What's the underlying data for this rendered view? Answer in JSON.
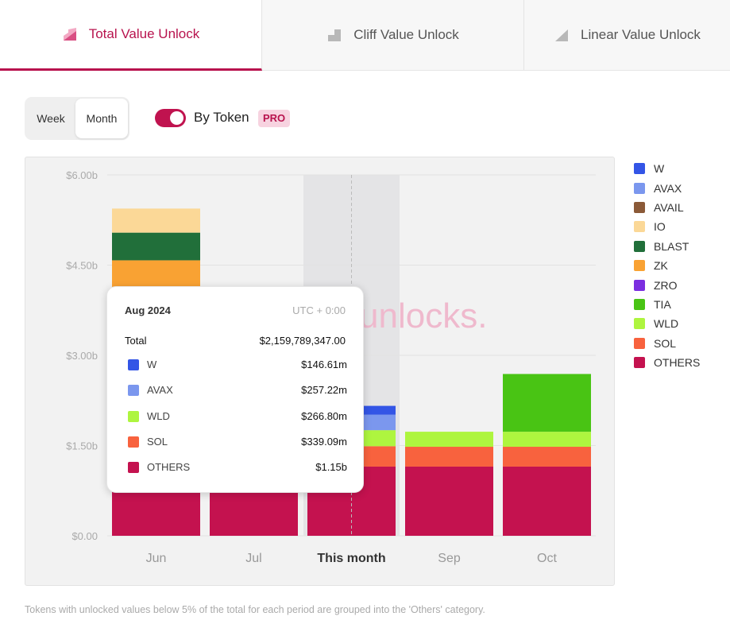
{
  "tabs": [
    {
      "label": "Total Value Unlock",
      "icon": "total-unlock-icon",
      "active": true
    },
    {
      "label": "Cliff Value Unlock",
      "icon": "cliff-unlock-icon",
      "active": false
    },
    {
      "label": "Linear Value Unlock",
      "icon": "linear-unlock-icon",
      "active": false
    }
  ],
  "controls": {
    "week_label": "Week",
    "month_label": "Month",
    "selected_period": "Month",
    "toggle_label": "By Token",
    "toggle_on": true,
    "pro_badge": "PRO"
  },
  "watermark": "unlocks.",
  "tooltip": {
    "month": "Aug 2024",
    "timezone": "UTC + 0:00",
    "total_label": "Total",
    "total_value": "$2,159,789,347.00",
    "rows": [
      {
        "name": "W",
        "value": "$146.61m",
        "color": "#3355e6"
      },
      {
        "name": "AVAX",
        "value": "$257.22m",
        "color": "#7b97ee"
      },
      {
        "name": "WLD",
        "value": "$266.80m",
        "color": "#aef53f"
      },
      {
        "name": "SOL",
        "value": "$339.09m",
        "color": "#f8623e"
      },
      {
        "name": "OTHERS",
        "value": "$1.15b",
        "color": "#c4124f"
      }
    ]
  },
  "footnote": "Tokens with unlocked values below 5% of the total for each period are grouped into the 'Others' category.",
  "chart_data": {
    "type": "bar",
    "stacked": true,
    "categories": [
      "Jun",
      "Jul",
      "This month",
      "Sep",
      "Oct"
    ],
    "highlighted_category": "This month",
    "y_tick_labels": [
      "$0.00",
      "$1.50b",
      "$3.00b",
      "$4.50b",
      "$6.00b"
    ],
    "y_ticks": [
      0,
      1.5,
      3.0,
      4.5,
      6.0
    ],
    "ylim": [
      0,
      6.0
    ],
    "y_unit": "billions USD",
    "grid": true,
    "legend_position": "right",
    "colors": {
      "W": "#3355e6",
      "AVAX": "#7b97ee",
      "AVAIL": "#8b5a38",
      "IO": "#fbd897",
      "BLAST": "#216f3a",
      "ZK": "#f9a233",
      "ZRO": "#7b2ee0",
      "TIA": "#49c414",
      "WLD": "#aef53f",
      "SOL": "#f8623e",
      "OTHERS": "#c4124f"
    },
    "legend": [
      "W",
      "AVAX",
      "AVAIL",
      "IO",
      "BLAST",
      "ZK",
      "ZRO",
      "TIA",
      "WLD",
      "SOL",
      "OTHERS"
    ],
    "series": [
      {
        "name": "OTHERS",
        "values": [
          4.1,
          3.9,
          1.15,
          1.15,
          1.15
        ]
      },
      {
        "name": "SOL",
        "values": [
          0,
          0,
          0.339,
          0.33,
          0.33
        ]
      },
      {
        "name": "WLD",
        "values": [
          0,
          0,
          0.267,
          0.25,
          0.25
        ]
      },
      {
        "name": "TIA",
        "values": [
          0,
          0,
          0,
          0,
          0.96
        ]
      },
      {
        "name": "AVAX",
        "values": [
          0,
          0,
          0.257,
          0,
          0
        ]
      },
      {
        "name": "W",
        "values": [
          0,
          0,
          0.147,
          0,
          0
        ]
      },
      {
        "name": "ZK",
        "values": [
          0.48,
          0,
          0,
          0,
          0
        ]
      },
      {
        "name": "BLAST",
        "values": [
          0.46,
          0,
          0,
          0,
          0
        ]
      },
      {
        "name": "IO",
        "values": [
          0.4,
          0,
          0,
          0,
          0
        ]
      }
    ]
  }
}
